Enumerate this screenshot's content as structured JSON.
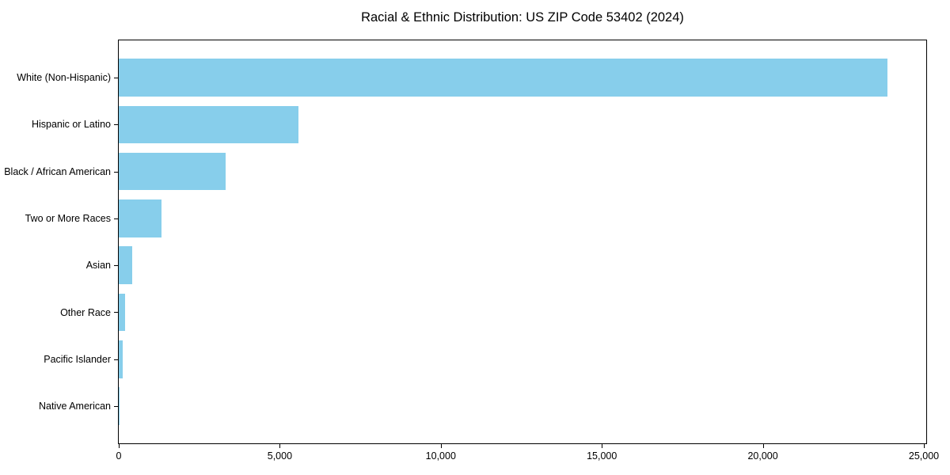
{
  "title": "Racial & Ethnic Distribution: US ZIP Code 53402 (2024)",
  "colors": {
    "bar": "#87CEEB",
    "spine": "#000000",
    "text": "#000000",
    "background": "#FFFFFF"
  },
  "chart_data": {
    "type": "bar",
    "orientation": "horizontal",
    "title": "Racial & Ethnic Distribution: US ZIP Code 53402 (2024)",
    "categories": [
      "White (Non-Hispanic)",
      "Hispanic or Latino",
      "Black / African American",
      "Two or More Races",
      "Asian",
      "Other Race",
      "Pacific Islander",
      "Native American"
    ],
    "values": [
      23870,
      5570,
      3310,
      1320,
      420,
      200,
      130,
      30
    ],
    "xlabel": "",
    "ylabel": "",
    "x_ticks": [
      0,
      5000,
      10000,
      15000,
      20000,
      25000
    ],
    "x_tick_labels": [
      "0",
      "5,000",
      "10,000",
      "15,000",
      "20,000",
      "25,000"
    ],
    "xlim": [
      0,
      25074
    ],
    "grid": false,
    "legend_position": "none",
    "bar_color": "#87CEEB"
  }
}
